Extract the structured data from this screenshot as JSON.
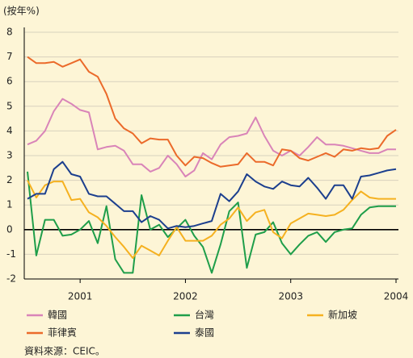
{
  "chart_data": {
    "type": "line",
    "y_label": "(按年%)",
    "source": "資料來源：CEIC。",
    "categories": [
      null,
      null,
      null,
      null,
      null,
      null,
      "2001",
      null,
      null,
      null,
      null,
      null,
      null,
      null,
      null,
      null,
      null,
      null,
      "2002",
      null,
      null,
      null,
      null,
      null,
      null,
      null,
      null,
      null,
      null,
      null,
      "2003",
      null,
      null,
      null,
      null,
      null,
      null,
      null,
      null,
      null,
      null,
      null,
      "2004"
    ],
    "series": [
      {
        "name": "韓國",
        "color": "#d984b8",
        "values": [
          3.45,
          3.6,
          4.0,
          4.8,
          5.3,
          5.1,
          4.85,
          4.75,
          3.25,
          3.35,
          3.4,
          3.2,
          2.65,
          2.65,
          2.35,
          2.5,
          3.0,
          2.65,
          2.15,
          2.4,
          3.1,
          2.85,
          3.45,
          3.75,
          3.8,
          3.9,
          4.55,
          3.8,
          3.2,
          3.0,
          3.2,
          3.0,
          3.35,
          3.75,
          3.45,
          3.45,
          3.4,
          3.3,
          3.2,
          3.1,
          3.1,
          3.25,
          3.25
        ]
      },
      {
        "name": "台灣",
        "color": "#1f9e4a",
        "values": [
          2.35,
          -1.05,
          0.4,
          0.4,
          -0.25,
          -0.2,
          0,
          0.35,
          -0.55,
          0.95,
          -1.2,
          -1.75,
          -1.75,
          1.4,
          0,
          0.2,
          -0.3,
          0.05,
          0.4,
          -0.25,
          -0.7,
          -1.75,
          -0.6,
          0.75,
          1.1,
          -1.55,
          -0.2,
          -0.1,
          0.3,
          -0.55,
          -1.0,
          -0.6,
          -0.25,
          -0.1,
          -0.5,
          -0.1,
          0,
          0.05,
          0.6,
          0.9,
          0.95,
          0.95,
          0.95
        ]
      },
      {
        "name": "新加坡",
        "color": "#f5b120",
        "values": [
          2.0,
          1.3,
          1.8,
          1.95,
          1.95,
          1.2,
          1.25,
          0.7,
          0.5,
          0.15,
          -0.3,
          -0.7,
          -1.15,
          -0.65,
          -0.85,
          -1.05,
          -0.45,
          0.1,
          -0.45,
          -0.45,
          -0.45,
          -0.25,
          0.2,
          0.45,
          0.9,
          0.35,
          0.7,
          0.8,
          -0.1,
          -0.35,
          0.25,
          0.45,
          0.65,
          0.6,
          0.55,
          0.6,
          0.8,
          1.2,
          1.55,
          1.3,
          1.25,
          1.25,
          1.25
        ]
      },
      {
        "name": "菲律賓",
        "color": "#eb6a2a",
        "values": [
          7.0,
          6.75,
          6.75,
          6.8,
          6.6,
          6.75,
          6.9,
          6.4,
          6.2,
          5.5,
          4.5,
          4.1,
          3.9,
          3.5,
          3.7,
          3.65,
          3.65,
          3.0,
          2.6,
          2.95,
          2.9,
          2.7,
          2.55,
          2.6,
          2.65,
          3.1,
          2.75,
          2.75,
          2.6,
          3.25,
          3.2,
          2.9,
          2.8,
          2.95,
          3.1,
          2.95,
          3.25,
          3.2,
          3.3,
          3.25,
          3.3,
          3.8,
          4.05
        ]
      },
      {
        "name": "泰國",
        "color": "#1c3f8e",
        "values": [
          1.25,
          1.45,
          1.45,
          2.45,
          2.75,
          2.25,
          2.15,
          1.45,
          1.35,
          1.35,
          1.05,
          0.75,
          0.75,
          0.3,
          0.55,
          0.4,
          0.05,
          0.15,
          0.1,
          0.15,
          0.25,
          0.35,
          1.45,
          1.15,
          1.55,
          2.25,
          1.95,
          1.75,
          1.65,
          1.95,
          1.8,
          1.75,
          2.1,
          1.7,
          1.25,
          1.8,
          1.8,
          1.25,
          2.15,
          2.2,
          2.3,
          2.4,
          2.45
        ]
      }
    ],
    "ylim": [
      -2,
      8
    ],
    "yticks": [
      -2,
      -1,
      0,
      1,
      2,
      3,
      4,
      5,
      6,
      7,
      8
    ],
    "grid": true
  }
}
